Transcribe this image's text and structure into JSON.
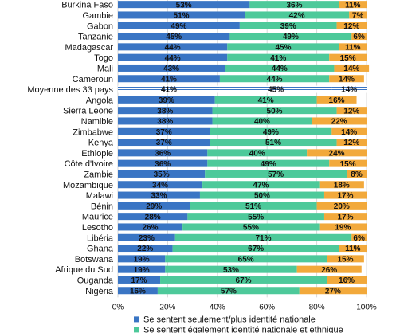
{
  "chart_data": {
    "type": "bar",
    "orientation": "horizontal",
    "stacked": true,
    "percent_axis": true,
    "xlim": [
      0,
      100
    ],
    "x_ticks": [
      "0%",
      "20%",
      "40%",
      "60%",
      "80%",
      "100%"
    ],
    "grid": true,
    "legend_position": "bottom",
    "highlighted_category": "Moyenne des 33 pays",
    "categories": [
      "Burkina Faso",
      "Gambie",
      "Gabon",
      "Tanzanie",
      "Madagascar",
      "Togo",
      "Mali",
      "Cameroun",
      "Moyenne des 33 pays",
      "Angola",
      "Sierra Leone",
      "Namibie",
      "Zimbabwe",
      "Kenya",
      "Ethiopie",
      "Côte d'Ivoire",
      "Zambie",
      "Mozambique",
      "Malawi",
      "Bénin",
      "Maurice",
      "Lesotho",
      "Libéria",
      "Ghana",
      "Botswana",
      "Afrique du Sud",
      "Ouganda",
      "Nigéria"
    ],
    "series": [
      {
        "name": "Se sentent seulement/plus identité nationale",
        "color": "#3A75C4",
        "values": [
          53,
          51,
          49,
          45,
          44,
          44,
          43,
          41,
          41,
          39,
          38,
          38,
          37,
          37,
          36,
          36,
          35,
          34,
          33,
          29,
          28,
          26,
          23,
          22,
          19,
          19,
          17,
          16
        ]
      },
      {
        "name": "Se sentent également identité nationale et ethnique",
        "color": "#4DC99A",
        "values": [
          36,
          42,
          39,
          49,
          45,
          41,
          44,
          44,
          45,
          41,
          50,
          40,
          49,
          51,
          40,
          49,
          57,
          47,
          50,
          51,
          55,
          55,
          71,
          67,
          65,
          53,
          67,
          57
        ]
      },
      {
        "name": "",
        "color": "#F2A93B",
        "values": [
          11,
          7,
          12,
          6,
          11,
          15,
          14,
          14,
          14,
          16,
          12,
          22,
          14,
          12,
          24,
          15,
          8,
          18,
          17,
          20,
          17,
          19,
          6,
          11,
          15,
          26,
          16,
          27
        ]
      }
    ]
  }
}
